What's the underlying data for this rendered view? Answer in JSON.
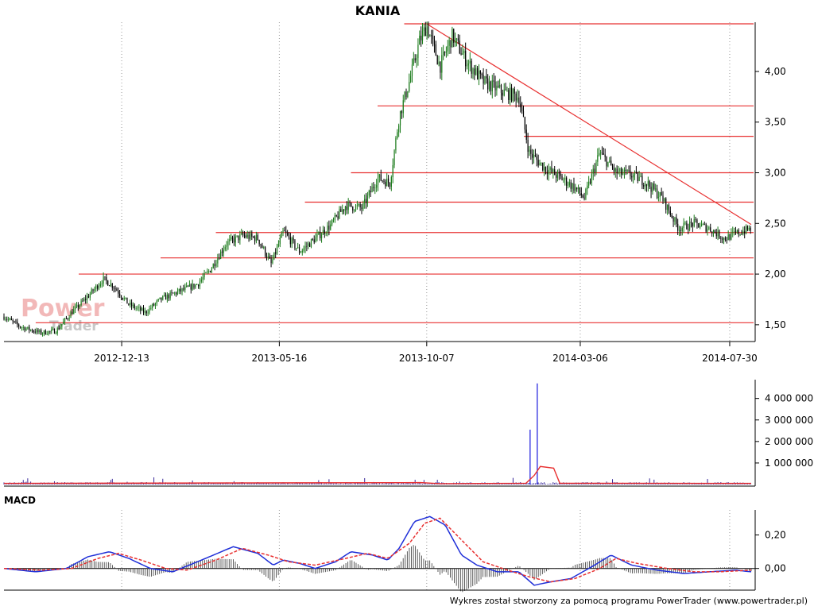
{
  "chart_data": [
    {
      "type": "candlestick",
      "panel": "price",
      "title": "KANIA",
      "ylim": [
        1.35,
        4.47
      ],
      "yticks": [
        "1,50",
        "2,00",
        "2,50",
        "3,00",
        "3,50",
        "4,00"
      ],
      "xticks": [
        "2012-12-13",
        "2013-05-16",
        "2013-10-07",
        "2014-03-06",
        "2014-07-30"
      ],
      "x_range": [
        "2012-08-20",
        "2014-08-20"
      ],
      "x_tick_dates": [
        "2012-12-13",
        "2013-05-16",
        "2013-10-07",
        "2014-03-06",
        "2014-07-30"
      ],
      "grid": true,
      "candle_color_up": "#1a7a1a",
      "candle_color_down": "#000000",
      "price_path": [
        [
          "2012-08-20",
          1.58
        ],
        [
          "2012-09-05",
          1.48
        ],
        [
          "2012-09-25",
          1.42
        ],
        [
          "2012-10-10",
          1.44
        ],
        [
          "2012-10-25",
          1.62
        ],
        [
          "2012-11-10",
          1.78
        ],
        [
          "2012-11-25",
          1.95
        ],
        [
          "2012-12-05",
          1.88
        ],
        [
          "2012-12-20",
          1.7
        ],
        [
          "2013-01-05",
          1.62
        ],
        [
          "2013-01-20",
          1.75
        ],
        [
          "2013-02-05",
          1.82
        ],
        [
          "2013-02-25",
          1.9
        ],
        [
          "2013-03-10",
          2.05
        ],
        [
          "2013-03-25",
          2.3
        ],
        [
          "2013-04-10",
          2.38
        ],
        [
          "2013-04-25",
          2.35
        ],
        [
          "2013-05-08",
          2.1
        ],
        [
          "2013-05-20",
          2.42
        ],
        [
          "2013-06-05",
          2.22
        ],
        [
          "2013-06-20",
          2.35
        ],
        [
          "2013-07-05",
          2.48
        ],
        [
          "2013-07-20",
          2.68
        ],
        [
          "2013-08-05",
          2.65
        ],
        [
          "2013-08-20",
          2.95
        ],
        [
          "2013-09-01",
          2.9
        ],
        [
          "2013-09-10",
          3.55
        ],
        [
          "2013-09-20",
          3.9
        ],
        [
          "2013-09-30",
          4.3
        ],
        [
          "2013-10-07",
          4.45
        ],
        [
          "2013-10-20",
          4.05
        ],
        [
          "2013-11-01",
          4.35
        ],
        [
          "2013-11-15",
          4.1
        ],
        [
          "2013-12-01",
          3.9
        ],
        [
          "2013-12-20",
          3.8
        ],
        [
          "2014-01-05",
          3.75
        ],
        [
          "2014-01-15",
          3.2
        ],
        [
          "2014-01-30",
          3.05
        ],
        [
          "2014-02-15",
          2.95
        ],
        [
          "2014-03-01",
          2.85
        ],
        [
          "2014-03-10",
          2.75
        ],
        [
          "2014-03-25",
          3.2
        ],
        [
          "2014-04-10",
          3.0
        ],
        [
          "2014-04-25",
          2.98
        ],
        [
          "2014-05-10",
          2.9
        ],
        [
          "2014-05-25",
          2.75
        ],
        [
          "2014-06-10",
          2.45
        ],
        [
          "2014-06-25",
          2.5
        ],
        [
          "2014-07-10",
          2.45
        ],
        [
          "2014-07-25",
          2.35
        ],
        [
          "2014-08-05",
          2.4
        ],
        [
          "2014-08-20",
          2.45
        ]
      ],
      "support_resistance_lines": [
        {
          "value": 4.47,
          "from": "2013-09-15"
        },
        {
          "value": 3.66,
          "from": "2013-08-20"
        },
        {
          "value": 3.36,
          "from": "2014-01-10"
        },
        {
          "value": 3.0,
          "from": "2013-07-25"
        },
        {
          "value": 2.71,
          "from": "2013-06-10"
        },
        {
          "value": 2.41,
          "from": "2013-03-15"
        },
        {
          "value": 2.16,
          "from": "2013-01-20"
        },
        {
          "value": 2.0,
          "from": "2012-11-01"
        },
        {
          "value": 1.52,
          "from": "2012-09-20"
        }
      ],
      "trend_line": {
        "from": [
          "2013-10-07",
          4.47
        ],
        "to": [
          "2014-08-20",
          2.49
        ]
      },
      "line_color": "#e83030"
    },
    {
      "type": "bar",
      "panel": "volume",
      "ylim": [
        0,
        4800000
      ],
      "yticks": [
        "1 000 000",
        "2 000 000",
        "3 000 000",
        "4 000 000"
      ],
      "bar_color": "#3a2a9a",
      "ma_color": "#e83030",
      "spikes": [
        {
          "date": "2014-01-16",
          "value": 2550000
        },
        {
          "date": "2014-01-23",
          "value": 4700000
        }
      ],
      "baseline": 80000,
      "ma_path": [
        [
          "2012-08-20",
          50000
        ],
        [
          "2013-10-01",
          90000
        ],
        [
          "2013-10-20",
          40000
        ],
        [
          "2014-01-12",
          60000
        ],
        [
          "2014-01-20",
          420000
        ],
        [
          "2014-01-26",
          840000
        ],
        [
          "2014-02-08",
          760000
        ],
        [
          "2014-02-14",
          60000
        ],
        [
          "2014-08-20",
          50000
        ]
      ]
    },
    {
      "type": "line",
      "panel": "macd",
      "title": "MACD",
      "ylim": [
        -0.12,
        0.34
      ],
      "yticks": [
        "0,00",
        "0,20"
      ],
      "series": [
        {
          "color": "#1f2fd8",
          "values": [
            [
              "2012-08-20",
              0.0
            ],
            [
              "2012-09-20",
              -0.02
            ],
            [
              "2012-10-20",
              0.0
            ],
            [
              "2012-11-10",
              0.07
            ],
            [
              "2012-12-01",
              0.1
            ],
            [
              "2012-12-20",
              0.06
            ],
            [
              "2013-01-10",
              0.0
            ],
            [
              "2013-02-01",
              -0.02
            ],
            [
              "2013-03-01",
              0.05
            ],
            [
              "2013-04-01",
              0.13
            ],
            [
              "2013-04-25",
              0.09
            ],
            [
              "2013-05-10",
              0.02
            ],
            [
              "2013-05-20",
              0.05
            ],
            [
              "2013-06-05",
              0.03
            ],
            [
              "2013-06-20",
              0.0
            ],
            [
              "2013-07-10",
              0.04
            ],
            [
              "2013-07-25",
              0.1
            ],
            [
              "2013-08-15",
              0.08
            ],
            [
              "2013-08-30",
              0.05
            ],
            [
              "2013-09-10",
              0.12
            ],
            [
              "2013-09-25",
              0.28
            ],
            [
              "2013-10-10",
              0.31
            ],
            [
              "2013-10-25",
              0.26
            ],
            [
              "2013-11-10",
              0.08
            ],
            [
              "2013-11-25",
              0.02
            ],
            [
              "2013-12-15",
              -0.02
            ],
            [
              "2014-01-05",
              -0.02
            ],
            [
              "2014-01-20",
              -0.1
            ],
            [
              "2014-02-05",
              -0.08
            ],
            [
              "2014-02-25",
              -0.06
            ],
            [
              "2014-03-20",
              0.02
            ],
            [
              "2014-04-05",
              0.08
            ],
            [
              "2014-04-25",
              0.02
            ],
            [
              "2014-05-20",
              -0.01
            ],
            [
              "2014-06-15",
              -0.03
            ],
            [
              "2014-07-10",
              -0.02
            ],
            [
              "2014-08-05",
              -0.01
            ],
            [
              "2014-08-20",
              -0.02
            ]
          ]
        },
        {
          "color": "#e83030",
          "dashed": true,
          "values": [
            [
              "2012-08-20",
              0.0
            ],
            [
              "2012-09-25",
              -0.01
            ],
            [
              "2012-10-25",
              0.0
            ],
            [
              "2012-11-20",
              0.06
            ],
            [
              "2012-12-10",
              0.09
            ],
            [
              "2013-01-01",
              0.05
            ],
            [
              "2013-01-25",
              0.0
            ],
            [
              "2013-02-15",
              -0.01
            ],
            [
              "2013-03-15",
              0.05
            ],
            [
              "2013-04-10",
              0.12
            ],
            [
              "2013-05-05",
              0.08
            ],
            [
              "2013-05-25",
              0.04
            ],
            [
              "2013-06-20",
              0.02
            ],
            [
              "2013-07-20",
              0.06
            ],
            [
              "2013-08-10",
              0.09
            ],
            [
              "2013-08-30",
              0.06
            ],
            [
              "2013-09-20",
              0.15
            ],
            [
              "2013-10-05",
              0.27
            ],
            [
              "2013-10-20",
              0.3
            ],
            [
              "2013-11-10",
              0.17
            ],
            [
              "2013-12-01",
              0.04
            ],
            [
              "2013-12-25",
              -0.01
            ],
            [
              "2014-01-15",
              -0.05
            ],
            [
              "2014-02-05",
              -0.08
            ],
            [
              "2014-03-01",
              -0.06
            ],
            [
              "2014-03-25",
              0.0
            ],
            [
              "2014-04-10",
              0.06
            ],
            [
              "2014-05-01",
              0.03
            ],
            [
              "2014-05-30",
              0.0
            ],
            [
              "2014-06-25",
              -0.02
            ],
            [
              "2014-07-20",
              -0.02
            ],
            [
              "2014-08-20",
              -0.01
            ]
          ]
        }
      ],
      "histogram_color": "#333333"
    }
  ],
  "watermark": {
    "line1": "Power",
    "line2": "Trader"
  },
  "footer": "Wykres został stworzony za pomocą programu PowerTrader (www.powertrader.pl)"
}
